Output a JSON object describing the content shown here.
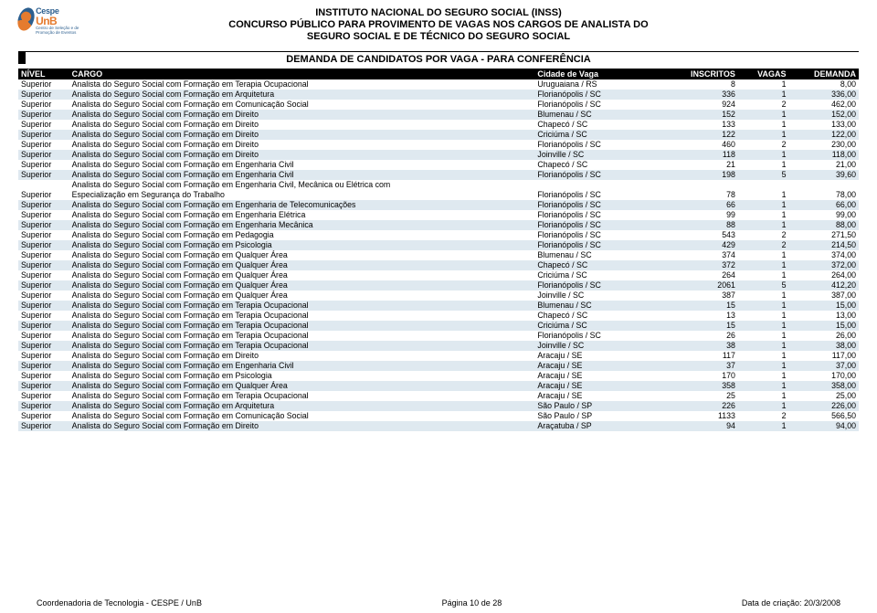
{
  "header": {
    "line1": "INSTITUTO NACIONAL DO SEGURO SOCIAL (INSS)",
    "line2": "CONCURSO PÚBLICO PARA PROVIMENTO DE VAGAS NOS CARGOS DE ANALISTA DO",
    "line3": "SEGURO SOCIAL E DE TÉCNICO DO SEGURO SOCIAL"
  },
  "logo": {
    "cespe": "Cespe",
    "unb": "UnB",
    "sub": "Centro de Seleção e de Promoção de Eventos"
  },
  "section_title": "DEMANDA DE CANDIDATOS POR VAGA - PARA CONFERÊNCIA",
  "columns": {
    "nivel": "NÍVEL",
    "cargo": "CARGO",
    "cidade": "Cidade de Vaga",
    "inscritos": "INSCRITOS",
    "vagas": "VAGAS",
    "demanda": "DEMANDA"
  },
  "rows": [
    {
      "nivel": "Superior",
      "cargo": "Analista do Seguro Social com Formação em Terapia Ocupacional",
      "cidade": "Uruguaiana / RS",
      "inscritos": "8",
      "vagas": "1",
      "demanda": "8,00",
      "alt": false
    },
    {
      "nivel": "Superior",
      "cargo": "Analista do Seguro Social com Formação em Arquitetura",
      "cidade": "Florianópolis / SC",
      "inscritos": "336",
      "vagas": "1",
      "demanda": "336,00",
      "alt": true
    },
    {
      "nivel": "Superior",
      "cargo": "Analista do Seguro Social com Formação em Comunicação Social",
      "cidade": "Florianópolis / SC",
      "inscritos": "924",
      "vagas": "2",
      "demanda": "462,00",
      "alt": false
    },
    {
      "nivel": "Superior",
      "cargo": "Analista do Seguro Social com Formação em Direito",
      "cidade": "Blumenau / SC",
      "inscritos": "152",
      "vagas": "1",
      "demanda": "152,00",
      "alt": true
    },
    {
      "nivel": "Superior",
      "cargo": "Analista do Seguro Social com Formação em Direito",
      "cidade": "Chapecó / SC",
      "inscritos": "133",
      "vagas": "1",
      "demanda": "133,00",
      "alt": false
    },
    {
      "nivel": "Superior",
      "cargo": "Analista do Seguro Social com Formação em Direito",
      "cidade": "Criciúma / SC",
      "inscritos": "122",
      "vagas": "1",
      "demanda": "122,00",
      "alt": true
    },
    {
      "nivel": "Superior",
      "cargo": "Analista do Seguro Social com Formação em Direito",
      "cidade": "Florianópolis / SC",
      "inscritos": "460",
      "vagas": "2",
      "demanda": "230,00",
      "alt": false
    },
    {
      "nivel": "Superior",
      "cargo": "Analista do Seguro Social com Formação em Direito",
      "cidade": "Joinville / SC",
      "inscritos": "118",
      "vagas": "1",
      "demanda": "118,00",
      "alt": true
    },
    {
      "nivel": "Superior",
      "cargo": "Analista do Seguro Social com Formação em Engenharia Civil",
      "cidade": "Chapecó / SC",
      "inscritos": "21",
      "vagas": "1",
      "demanda": "21,00",
      "alt": false
    },
    {
      "nivel": "Superior",
      "cargo": "Analista do Seguro Social com Formação em Engenharia Civil",
      "cidade": "Florianópolis / SC",
      "inscritos": "198",
      "vagas": "5",
      "demanda": "39,60",
      "alt": true
    },
    {
      "nivel": "",
      "cargo": "Analista do Seguro Social com Formação em Engenharia Civil, Mecânica ou Elétrica com",
      "cidade": "",
      "inscritos": "",
      "vagas": "",
      "demanda": "",
      "alt": false
    },
    {
      "nivel": "Superior",
      "cargo": "Especialização em Segurança do Trabalho",
      "cidade": "Florianópolis / SC",
      "inscritos": "78",
      "vagas": "1",
      "demanda": "78,00",
      "alt": false
    },
    {
      "nivel": "Superior",
      "cargo": "Analista do Seguro Social com Formação em Engenharia de Telecomunicações",
      "cidade": "Florianópolis / SC",
      "inscritos": "66",
      "vagas": "1",
      "demanda": "66,00",
      "alt": true
    },
    {
      "nivel": "Superior",
      "cargo": "Analista do Seguro Social com Formação em Engenharia Elétrica",
      "cidade": "Florianópolis / SC",
      "inscritos": "99",
      "vagas": "1",
      "demanda": "99,00",
      "alt": false
    },
    {
      "nivel": "Superior",
      "cargo": "Analista do Seguro Social com Formação em Engenharia Mecânica",
      "cidade": "Florianópolis / SC",
      "inscritos": "88",
      "vagas": "1",
      "demanda": "88,00",
      "alt": true
    },
    {
      "nivel": "Superior",
      "cargo": "Analista do Seguro Social com Formação em Pedagogia",
      "cidade": "Florianópolis / SC",
      "inscritos": "543",
      "vagas": "2",
      "demanda": "271,50",
      "alt": false
    },
    {
      "nivel": "Superior",
      "cargo": "Analista do Seguro Social com Formação em Psicologia",
      "cidade": "Florianópolis / SC",
      "inscritos": "429",
      "vagas": "2",
      "demanda": "214,50",
      "alt": true
    },
    {
      "nivel": "Superior",
      "cargo": "Analista do Seguro Social com Formação em Qualquer Área",
      "cidade": "Blumenau / SC",
      "inscritos": "374",
      "vagas": "1",
      "demanda": "374,00",
      "alt": false
    },
    {
      "nivel": "Superior",
      "cargo": "Analista do Seguro Social com Formação em Qualquer Área",
      "cidade": "Chapecó / SC",
      "inscritos": "372",
      "vagas": "1",
      "demanda": "372,00",
      "alt": true
    },
    {
      "nivel": "Superior",
      "cargo": "Analista do Seguro Social com Formação em Qualquer Área",
      "cidade": "Criciúma / SC",
      "inscritos": "264",
      "vagas": "1",
      "demanda": "264,00",
      "alt": false
    },
    {
      "nivel": "Superior",
      "cargo": "Analista do Seguro Social com Formação em Qualquer Área",
      "cidade": "Florianópolis / SC",
      "inscritos": "2061",
      "vagas": "5",
      "demanda": "412,20",
      "alt": true
    },
    {
      "nivel": "Superior",
      "cargo": "Analista do Seguro Social com Formação em Qualquer Área",
      "cidade": "Joinville / SC",
      "inscritos": "387",
      "vagas": "1",
      "demanda": "387,00",
      "alt": false
    },
    {
      "nivel": "Superior",
      "cargo": "Analista do Seguro Social com Formação em Terapia Ocupacional",
      "cidade": "Blumenau / SC",
      "inscritos": "15",
      "vagas": "1",
      "demanda": "15,00",
      "alt": true
    },
    {
      "nivel": "Superior",
      "cargo": "Analista do Seguro Social com Formação em Terapia Ocupacional",
      "cidade": "Chapecó / SC",
      "inscritos": "13",
      "vagas": "1",
      "demanda": "13,00",
      "alt": false
    },
    {
      "nivel": "Superior",
      "cargo": "Analista do Seguro Social com Formação em Terapia Ocupacional",
      "cidade": "Criciúma / SC",
      "inscritos": "15",
      "vagas": "1",
      "demanda": "15,00",
      "alt": true
    },
    {
      "nivel": "Superior",
      "cargo": "Analista do Seguro Social com Formação em Terapia Ocupacional",
      "cidade": "Florianópolis / SC",
      "inscritos": "26",
      "vagas": "1",
      "demanda": "26,00",
      "alt": false
    },
    {
      "nivel": "Superior",
      "cargo": "Analista do Seguro Social com Formação em Terapia Ocupacional",
      "cidade": "Joinville / SC",
      "inscritos": "38",
      "vagas": "1",
      "demanda": "38,00",
      "alt": true
    },
    {
      "nivel": "Superior",
      "cargo": "Analista do Seguro Social com Formação em Direito",
      "cidade": "Aracaju / SE",
      "inscritos": "117",
      "vagas": "1",
      "demanda": "117,00",
      "alt": false
    },
    {
      "nivel": "Superior",
      "cargo": "Analista do Seguro Social com Formação em Engenharia Civil",
      "cidade": "Aracaju / SE",
      "inscritos": "37",
      "vagas": "1",
      "demanda": "37,00",
      "alt": true
    },
    {
      "nivel": "Superior",
      "cargo": "Analista do Seguro Social com Formação em Psicologia",
      "cidade": "Aracaju / SE",
      "inscritos": "170",
      "vagas": "1",
      "demanda": "170,00",
      "alt": false
    },
    {
      "nivel": "Superior",
      "cargo": "Analista do Seguro Social com Formação em Qualquer Área",
      "cidade": "Aracaju / SE",
      "inscritos": "358",
      "vagas": "1",
      "demanda": "358,00",
      "alt": true
    },
    {
      "nivel": "Superior",
      "cargo": "Analista do Seguro Social com Formação em Terapia Ocupacional",
      "cidade": "Aracaju / SE",
      "inscritos": "25",
      "vagas": "1",
      "demanda": "25,00",
      "alt": false
    },
    {
      "nivel": "Superior",
      "cargo": "Analista do Seguro Social com Formação em Arquitetura",
      "cidade": "São Paulo / SP",
      "inscritos": "226",
      "vagas": "1",
      "demanda": "226,00",
      "alt": true
    },
    {
      "nivel": "Superior",
      "cargo": "Analista do Seguro Social com Formação em Comunicação Social",
      "cidade": "São Paulo / SP",
      "inscritos": "1133",
      "vagas": "2",
      "demanda": "566,50",
      "alt": false
    },
    {
      "nivel": "Superior",
      "cargo": "Analista do Seguro Social com Formação em Direito",
      "cidade": "Araçatuba / SP",
      "inscritos": "94",
      "vagas": "1",
      "demanda": "94,00",
      "alt": true
    }
  ],
  "footer": {
    "left": "Coordenadoria de Tecnologia - CESPE / UnB",
    "center": "Página 10 de 28",
    "right": "Data de criação: 20/3/2008"
  }
}
